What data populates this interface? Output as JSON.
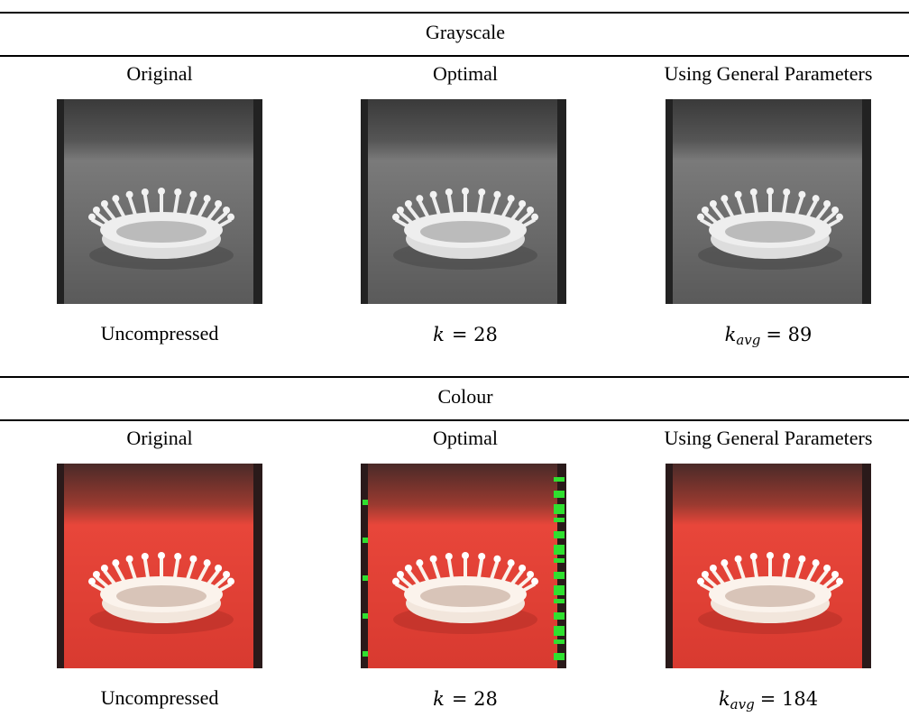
{
  "sections": [
    {
      "title": "Grayscale",
      "columns": [
        {
          "header": "Original",
          "caption": {
            "text": "Uncompressed"
          }
        },
        {
          "header": "Optimal",
          "caption": {
            "symbol": "k",
            "relation": "= 28"
          }
        },
        {
          "header": "Using General Parameters",
          "caption": {
            "symbol": "k",
            "subscript": "avg",
            "relation": "= 89"
          }
        }
      ]
    },
    {
      "title": "Colour",
      "columns": [
        {
          "header": "Original",
          "caption": {
            "text": "Uncompressed"
          }
        },
        {
          "header": "Optimal",
          "caption": {
            "symbol": "k",
            "relation": "= 28"
          }
        },
        {
          "header": "Using General Parameters",
          "caption": {
            "symbol": "k",
            "subscript": "avg",
            "relation": "= 184"
          }
        }
      ]
    }
  ]
}
